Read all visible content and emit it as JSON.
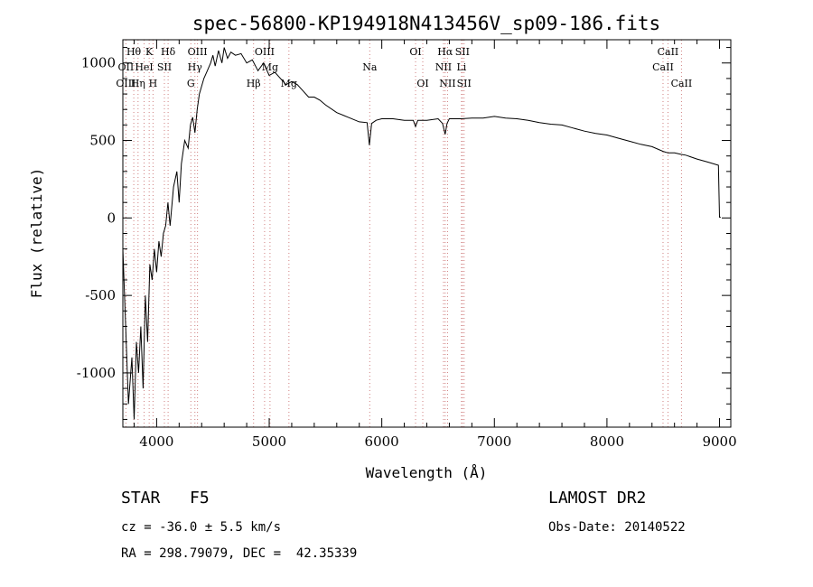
{
  "chart_data": {
    "type": "line",
    "title": "spec-56800-KP194918N413456V_sp09-186.fits",
    "xlabel": "Wavelength (Å)",
    "ylabel": "Flux (relative)",
    "xlim": [
      3700,
      9100
    ],
    "ylim": [
      -1350,
      1150
    ],
    "x_ticks": [
      4000,
      5000,
      6000,
      7000,
      8000,
      9000
    ],
    "y_ticks": [
      -1000,
      -500,
      0,
      500,
      1000
    ],
    "grid": false,
    "series": [
      {
        "x": [
          3700,
          3720,
          3750,
          3780,
          3800,
          3820,
          3840,
          3860,
          3880,
          3900,
          3920,
          3940,
          3960,
          3980,
          4000,
          4020,
          4040,
          4060,
          4080,
          4100,
          4120,
          4150,
          4180,
          4200,
          4220,
          4250,
          4280,
          4300,
          4320,
          4340,
          4360,
          4380,
          4400,
          4420,
          4450,
          4480,
          4500,
          4520,
          4550,
          4580,
          4600,
          4630,
          4660,
          4700,
          4750,
          4800,
          4850,
          4900,
          4950,
          5000,
          5050,
          5100,
          5150,
          5200,
          5250,
          5300,
          5350,
          5400,
          5450,
          5500,
          5600,
          5700,
          5800,
          5870,
          5890,
          5910,
          5950,
          6000,
          6100,
          6200,
          6280,
          6300,
          6320,
          6400,
          6500,
          6540,
          6563,
          6580,
          6600,
          6700,
          6800,
          6900,
          7000,
          7100,
          7200,
          7300,
          7400,
          7500,
          7600,
          7700,
          7800,
          7900,
          8000,
          8100,
          8200,
          8300,
          8400,
          8498,
          8542,
          8600,
          8662,
          8700,
          8800,
          8900,
          8990,
          9000,
          9010
        ],
        "y": [
          -200,
          -600,
          -1200,
          -900,
          -1300,
          -800,
          -1000,
          -700,
          -1100,
          -500,
          -800,
          -300,
          -400,
          -200,
          -350,
          -150,
          -250,
          -100,
          -50,
          100,
          -50,
          200,
          300,
          100,
          350,
          500,
          450,
          600,
          650,
          550,
          700,
          800,
          850,
          900,
          950,
          1000,
          1050,
          980,
          1080,
          1000,
          1100,
          1030,
          1070,
          1050,
          1060,
          1000,
          1020,
          950,
          1000,
          920,
          940,
          900,
          860,
          880,
          860,
          820,
          780,
          780,
          760,
          730,
          680,
          650,
          620,
          615,
          470,
          610,
          630,
          640,
          640,
          630,
          630,
          590,
          630,
          630,
          640,
          610,
          540,
          610,
          640,
          640,
          645,
          645,
          655,
          645,
          640,
          630,
          615,
          605,
          600,
          580,
          560,
          545,
          535,
          515,
          495,
          475,
          460,
          430,
          420,
          420,
          410,
          405,
          380,
          360,
          340,
          5,
          5
        ]
      }
    ],
    "annotations": [
      {
        "text": "Hθ",
        "x": 3797,
        "row": 1
      },
      {
        "text": "K",
        "x": 3934,
        "row": 1
      },
      {
        "text": "Hδ",
        "x": 4102,
        "row": 1
      },
      {
        "text": "OIII",
        "x": 4363,
        "row": 1
      },
      {
        "text": "OIII",
        "x": 4959,
        "row": 1
      },
      {
        "text": "OI",
        "x": 6300,
        "row": 1
      },
      {
        "text": "Hα",
        "x": 6563,
        "row": 1
      },
      {
        "text": "SII",
        "x": 6716,
        "row": 1
      },
      {
        "text": "CaII",
        "x": 8542,
        "row": 1
      },
      {
        "text": "OII",
        "x": 3727,
        "row": 2
      },
      {
        "text": "HeI",
        "x": 3889,
        "row": 2
      },
      {
        "text": "SII",
        "x": 4069,
        "row": 2
      },
      {
        "text": "Hγ",
        "x": 4340,
        "row": 2
      },
      {
        "text": "Mg",
        "x": 5007,
        "row": 2
      },
      {
        "text": "Na",
        "x": 5893,
        "row": 2
      },
      {
        "text": "NII",
        "x": 6548,
        "row": 2
      },
      {
        "text": "Li",
        "x": 6708,
        "row": 2
      },
      {
        "text": "CaII",
        "x": 8498,
        "row": 2
      },
      {
        "text": "OIII",
        "x": 3727,
        "row": 3
      },
      {
        "text": "Hη",
        "x": 3835,
        "row": 3
      },
      {
        "text": "H",
        "x": 3968,
        "row": 3
      },
      {
        "text": "G",
        "x": 4304,
        "row": 3
      },
      {
        "text": "Hβ",
        "x": 4861,
        "row": 3
      },
      {
        "text": "Mg",
        "x": 5175,
        "row": 3
      },
      {
        "text": "OI",
        "x": 6364,
        "row": 3
      },
      {
        "text": "NII",
        "x": 6584,
        "row": 3
      },
      {
        "text": "SII",
        "x": 6731,
        "row": 3
      },
      {
        "text": "CaII",
        "x": 8662,
        "row": 3
      }
    ],
    "marker_lines": [
      3727,
      3797,
      3835,
      3889,
      3934,
      3968,
      4069,
      4102,
      4304,
      4340,
      4363,
      4861,
      4959,
      5007,
      5175,
      5893,
      6300,
      6364,
      6548,
      6563,
      6584,
      6708,
      6716,
      6731,
      8498,
      8542,
      8662
    ]
  },
  "info": {
    "class_label": "STAR",
    "subclass": "F5",
    "redshift": "cz = -36.0 ± 5.5 km/s",
    "coords": "RA = 298.79079, DEC =  42.35339",
    "survey": "LAMOST DR2",
    "obs_date": "Obs-Date: 20140522"
  }
}
